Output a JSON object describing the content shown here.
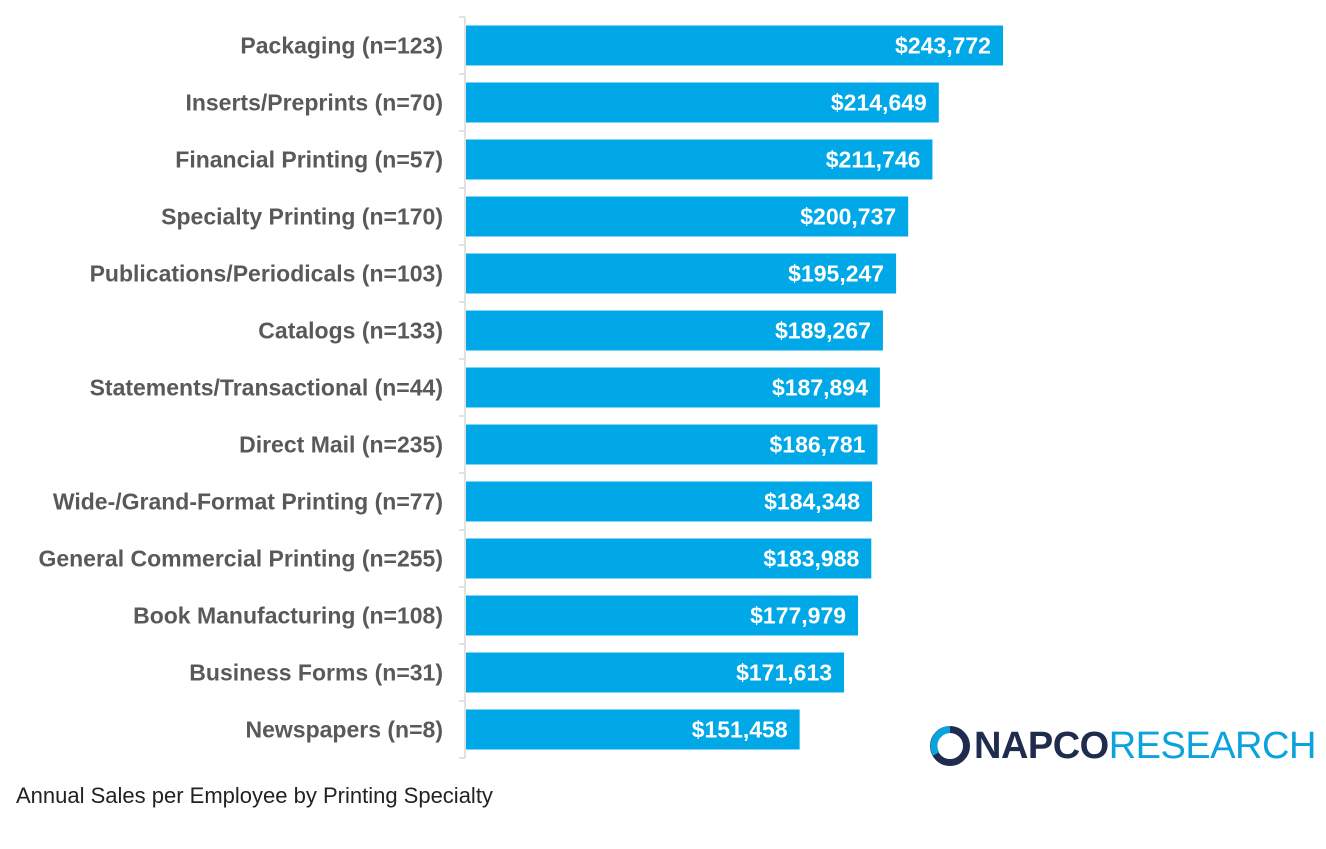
{
  "chart_data": {
    "type": "bar",
    "orientation": "horizontal",
    "title": "",
    "xlabel": "",
    "ylabel": "",
    "categories": [
      "Packaging (n=123)",
      "Inserts/Preprints (n=70)",
      "Financial Printing (n=57)",
      "Specialty Printing (n=170)",
      "Publications/Periodicals (n=103)",
      "Catalogs (n=133)",
      "Statements/Transactional (n=44)",
      "Direct Mail (n=235)",
      "Wide-/Grand-Format Printing (n=77)",
      "General Commercial Printing (n=255)",
      "Book Manufacturing (n=108)",
      "Business Forms (n=31)",
      "Newspapers (n=8)"
    ],
    "values": [
      243772,
      214649,
      211746,
      200737,
      195247,
      189267,
      187894,
      186781,
      184348,
      183988,
      177979,
      171613,
      151458
    ],
    "value_labels": [
      "$243,772",
      "$214,649",
      "$211,746",
      "$200,737",
      "$195,247",
      "$189,267",
      "$187,894",
      "$186,781",
      "$184,348",
      "$183,988",
      "$177,979",
      "$171,613",
      "$151,458"
    ],
    "xlim": [
      0,
      350000
    ],
    "grid": false,
    "bar_color": "#00a8e8",
    "label_color": "#595959"
  },
  "caption": "Annual Sales per Employee by Printing Specialty",
  "logo": {
    "icon": "napco-ring-icon",
    "napco": "NAPCO",
    "research": "RESEARCH",
    "colors": {
      "napco": "#1f2c4d",
      "research": "#0aa3dc"
    }
  }
}
